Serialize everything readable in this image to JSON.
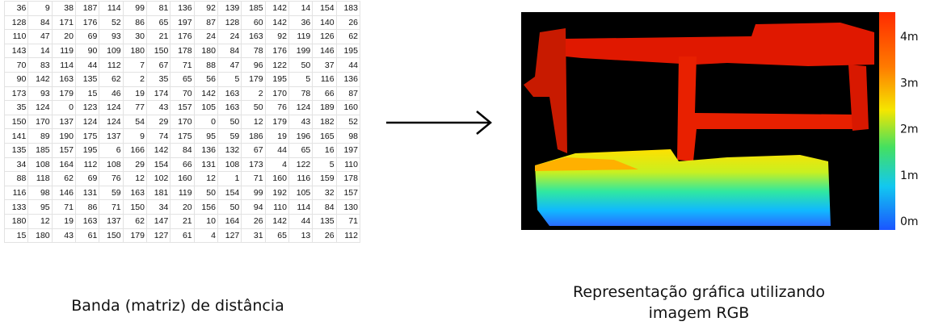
{
  "table": {
    "rows": [
      [
        36,
        9,
        38,
        187,
        114,
        99,
        81,
        136,
        92,
        139,
        185,
        142,
        14,
        154,
        183
      ],
      [
        128,
        84,
        171,
        176,
        52,
        86,
        65,
        197,
        87,
        128,
        60,
        142,
        36,
        140,
        26
      ],
      [
        110,
        47,
        20,
        69,
        93,
        30,
        21,
        176,
        24,
        24,
        163,
        92,
        119,
        126,
        62
      ],
      [
        143,
        14,
        119,
        90,
        109,
        180,
        150,
        178,
        180,
        84,
        78,
        176,
        199,
        146,
        195
      ],
      [
        70,
        83,
        114,
        44,
        112,
        7,
        67,
        71,
        88,
        47,
        96,
        122,
        50,
        37,
        44
      ],
      [
        90,
        142,
        163,
        135,
        62,
        2,
        35,
        65,
        56,
        5,
        179,
        195,
        5,
        116,
        136
      ],
      [
        173,
        93,
        179,
        15,
        46,
        19,
        174,
        70,
        142,
        163,
        2,
        170,
        78,
        66,
        87
      ],
      [
        35,
        124,
        0,
        123,
        124,
        77,
        43,
        157,
        105,
        163,
        50,
        76,
        124,
        189,
        160
      ],
      [
        150,
        170,
        137,
        124,
        124,
        54,
        29,
        170,
        0,
        50,
        12,
        179,
        43,
        182,
        52
      ],
      [
        141,
        89,
        190,
        175,
        137,
        9,
        74,
        175,
        95,
        59,
        186,
        19,
        196,
        165,
        98
      ],
      [
        135,
        185,
        157,
        195,
        6,
        166,
        142,
        84,
        136,
        132,
        67,
        44,
        65,
        16,
        197
      ],
      [
        34,
        108,
        164,
        112,
        108,
        29,
        154,
        66,
        131,
        108,
        173,
        4,
        122,
        5,
        110
      ],
      [
        88,
        118,
        62,
        69,
        76,
        12,
        102,
        160,
        12,
        1,
        71,
        160,
        116,
        159,
        178
      ],
      [
        116,
        98,
        146,
        131,
        59,
        163,
        181,
        119,
        50,
        154,
        99,
        192,
        105,
        32,
        157
      ],
      [
        133,
        95,
        71,
        86,
        71,
        150,
        34,
        20,
        156,
        50,
        94,
        110,
        114,
        84,
        130
      ],
      [
        180,
        12,
        19,
        163,
        137,
        62,
        147,
        21,
        10,
        164,
        26,
        142,
        44,
        135,
        71
      ],
      [
        15,
        180,
        43,
        61,
        150,
        179,
        127,
        61,
        4,
        127,
        31,
        65,
        13,
        26,
        112
      ]
    ]
  },
  "depth_image": {
    "colorbar_labels": [
      "4m",
      "3m",
      "2m",
      "1m",
      "0m"
    ]
  },
  "captions": {
    "left": "Banda (matriz) de distância",
    "right": [
      "Representação gráfica utilizando",
      "imagem RGB"
    ]
  }
}
